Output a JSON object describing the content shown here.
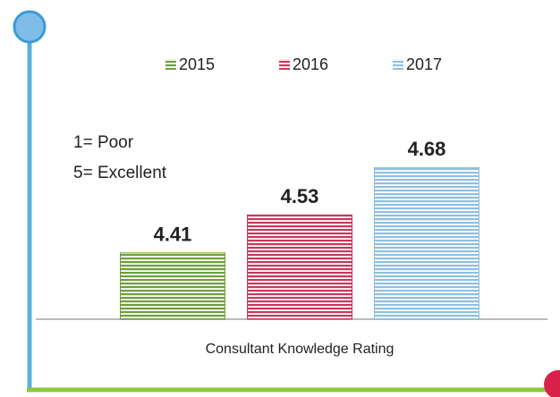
{
  "chart_data": {
    "type": "bar",
    "categories": [
      "Consultant Knowledge Rating"
    ],
    "series": [
      {
        "name": "2015",
        "color": "#6f9e3c",
        "values": [
          4.41
        ]
      },
      {
        "name": "2016",
        "color": "#c8385a",
        "values": [
          4.53
        ]
      },
      {
        "name": "2017",
        "color": "#8fbfe0",
        "values": [
          4.68
        ]
      }
    ],
    "ylim": [
      4.2,
      4.8
    ],
    "annotations": [
      "1= Poor",
      "5= Excellent"
    ],
    "legend": "top"
  }
}
